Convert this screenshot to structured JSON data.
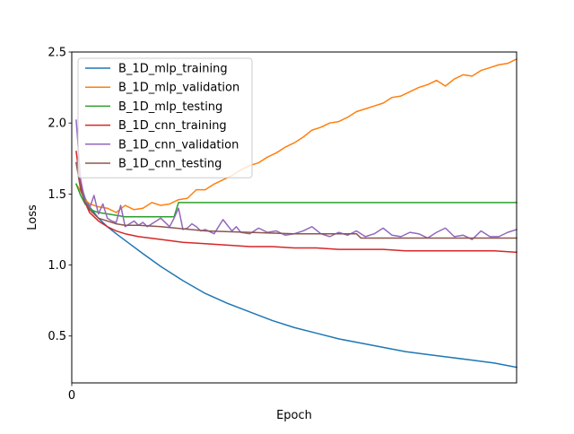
{
  "chart_data": {
    "type": "line",
    "title": "",
    "xlabel": "Epoch",
    "ylabel": "Loss",
    "xlim": [
      0,
      100
    ],
    "ylim": [
      0.17,
      2.5
    ],
    "x_ticks": [
      0
    ],
    "x_tick_labels": [
      "0"
    ],
    "y_ticks": [
      0.5,
      1.0,
      1.5,
      2.0,
      2.5
    ],
    "y_tick_labels": [
      "0.5",
      "1.0",
      "1.5",
      "2.0",
      "2.5"
    ],
    "grid": false,
    "legend_position": "top-left",
    "series": [
      {
        "name": "B_1D_mlp_training",
        "color": "#1f77b4",
        "x": [
          1,
          2,
          3,
          4,
          6,
          8,
          10,
          13,
          16,
          20,
          25,
          30,
          35,
          40,
          45,
          50,
          55,
          60,
          65,
          70,
          75,
          80,
          85,
          90,
          95,
          100
        ],
        "y": [
          1.72,
          1.57,
          1.47,
          1.41,
          1.33,
          1.27,
          1.22,
          1.15,
          1.08,
          0.99,
          0.89,
          0.8,
          0.73,
          0.67,
          0.61,
          0.56,
          0.52,
          0.48,
          0.45,
          0.42,
          0.39,
          0.37,
          0.35,
          0.33,
          0.31,
          0.28
        ]
      },
      {
        "name": "B_1D_mlp_validation",
        "color": "#ff7f0e",
        "x": [
          1,
          2,
          3,
          4,
          6,
          8,
          10,
          12,
          14,
          16,
          18,
          20,
          22,
          24,
          26,
          28,
          30,
          32,
          34,
          36,
          38,
          40,
          42,
          44,
          46,
          48,
          50,
          52,
          54,
          56,
          58,
          60,
          62,
          64,
          66,
          68,
          70,
          72,
          74,
          76,
          78,
          80,
          82,
          84,
          86,
          88,
          90,
          92,
          94,
          96,
          98,
          100
        ],
        "y": [
          1.57,
          1.52,
          1.46,
          1.43,
          1.41,
          1.4,
          1.37,
          1.42,
          1.39,
          1.4,
          1.44,
          1.42,
          1.43,
          1.46,
          1.47,
          1.53,
          1.53,
          1.57,
          1.6,
          1.63,
          1.67,
          1.7,
          1.72,
          1.76,
          1.79,
          1.83,
          1.86,
          1.9,
          1.95,
          1.97,
          2.0,
          2.01,
          2.04,
          2.08,
          2.1,
          2.12,
          2.14,
          2.18,
          2.19,
          2.22,
          2.25,
          2.27,
          2.3,
          2.26,
          2.31,
          2.34,
          2.33,
          2.37,
          2.39,
          2.41,
          2.42,
          2.45
        ]
      },
      {
        "name": "B_1D_mlp_testing",
        "color": "#2ca02c",
        "x": [
          1,
          2,
          3,
          4,
          5,
          6,
          8,
          10,
          12,
          15,
          20,
          23,
          24,
          30,
          40,
          50,
          60,
          70,
          80,
          90,
          100
        ],
        "y": [
          1.57,
          1.49,
          1.43,
          1.4,
          1.38,
          1.37,
          1.36,
          1.35,
          1.34,
          1.34,
          1.34,
          1.34,
          1.44,
          1.44,
          1.44,
          1.44,
          1.44,
          1.44,
          1.44,
          1.44,
          1.44
        ]
      },
      {
        "name": "B_1D_cnn_training",
        "color": "#d62728",
        "x": [
          1,
          2,
          3,
          4,
          6,
          8,
          10,
          12,
          15,
          20,
          25,
          30,
          35,
          40,
          45,
          50,
          55,
          60,
          65,
          70,
          75,
          80,
          85,
          90,
          95,
          100
        ],
        "y": [
          1.8,
          1.55,
          1.44,
          1.37,
          1.31,
          1.27,
          1.24,
          1.22,
          1.2,
          1.18,
          1.16,
          1.15,
          1.14,
          1.13,
          1.13,
          1.12,
          1.12,
          1.11,
          1.11,
          1.11,
          1.1,
          1.1,
          1.1,
          1.1,
          1.1,
          1.09
        ]
      },
      {
        "name": "B_1D_cnn_validation",
        "color": "#9467bd",
        "x": [
          1,
          2,
          3,
          4,
          5,
          6,
          7,
          8,
          9,
          10,
          11,
          12,
          13,
          14,
          15,
          16,
          17,
          18,
          19,
          20,
          21,
          22,
          23,
          24,
          25,
          26,
          27,
          28,
          29,
          30,
          32,
          34,
          36,
          37,
          38,
          40,
          42,
          44,
          46,
          48,
          50,
          52,
          54,
          56,
          58,
          60,
          62,
          64,
          66,
          68,
          70,
          72,
          74,
          76,
          78,
          80,
          82,
          84,
          86,
          88,
          90,
          92,
          94,
          96,
          98,
          100
        ],
        "y": [
          2.02,
          1.6,
          1.45,
          1.4,
          1.49,
          1.36,
          1.43,
          1.33,
          1.31,
          1.3,
          1.42,
          1.27,
          1.29,
          1.31,
          1.28,
          1.3,
          1.27,
          1.29,
          1.31,
          1.33,
          1.3,
          1.27,
          1.33,
          1.4,
          1.25,
          1.26,
          1.29,
          1.27,
          1.24,
          1.25,
          1.22,
          1.32,
          1.24,
          1.27,
          1.23,
          1.22,
          1.26,
          1.23,
          1.24,
          1.21,
          1.22,
          1.24,
          1.27,
          1.22,
          1.2,
          1.23,
          1.21,
          1.24,
          1.2,
          1.22,
          1.26,
          1.21,
          1.2,
          1.23,
          1.22,
          1.19,
          1.23,
          1.26,
          1.2,
          1.21,
          1.18,
          1.24,
          1.2,
          1.2,
          1.23,
          1.25
        ]
      },
      {
        "name": "B_1D_cnn_testing",
        "color": "#8c564b",
        "x": [
          1,
          2,
          3,
          4,
          5,
          6,
          8,
          10,
          12,
          15,
          20,
          30,
          40,
          50,
          60,
          64,
          65,
          70,
          80,
          90,
          100
        ],
        "y": [
          1.72,
          1.53,
          1.44,
          1.39,
          1.36,
          1.33,
          1.31,
          1.29,
          1.28,
          1.28,
          1.27,
          1.24,
          1.23,
          1.22,
          1.22,
          1.22,
          1.19,
          1.19,
          1.19,
          1.19,
          1.19
        ]
      }
    ]
  }
}
